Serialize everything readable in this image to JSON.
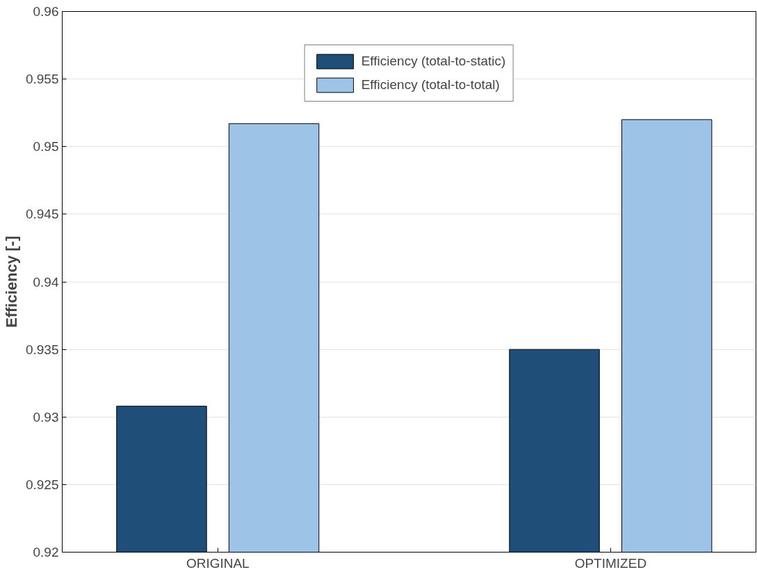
{
  "chart_data": {
    "type": "bar",
    "ylabel": "Efficiency [-]",
    "categories": [
      "ORIGINAL",
      "OPTIMIZED"
    ],
    "series": [
      {
        "name": "Efficiency (total-to-static)",
        "color": "#1f4e79",
        "values": [
          0.9308,
          0.935
        ]
      },
      {
        "name": "Efficiency (total-to-total)",
        "color": "#9dc3e6",
        "values": [
          0.9517,
          0.952
        ]
      }
    ],
    "ylim": [
      0.92,
      0.96
    ],
    "yticks": [
      0.92,
      0.925,
      0.93,
      0.935,
      0.94,
      0.945,
      0.95,
      0.955,
      0.96
    ],
    "grid": "y",
    "legend": "top"
  }
}
